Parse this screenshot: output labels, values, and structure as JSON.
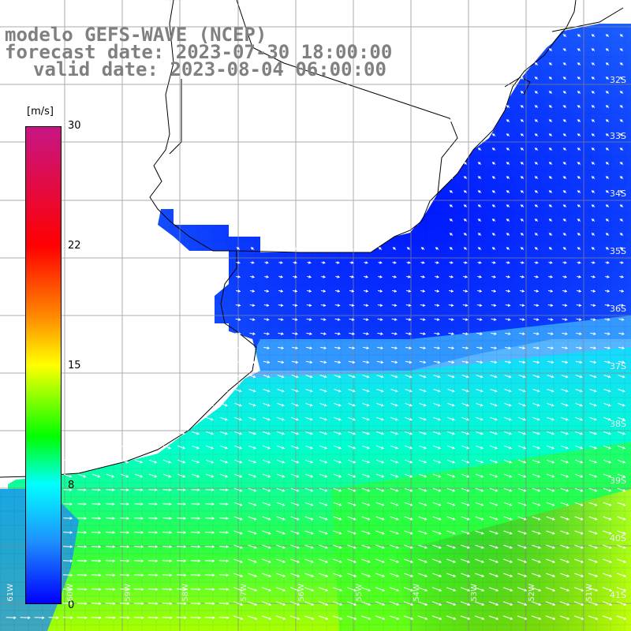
{
  "title": {
    "line1": "modelo GEFS-WAVE (NCEP)",
    "line2": "forecast date: 2023-07-30 18:00:00",
    "line3": "valid date: 2023-08-04 06:00:00"
  },
  "colorbar": {
    "units": "[m/s]",
    "ticks": [
      "30",
      "22",
      "15",
      "8",
      "0"
    ],
    "colors": [
      "#c71585",
      "#ff0000",
      "#ff8c00",
      "#ffff00",
      "#00ff00",
      "#00ffff",
      "#1e90ff",
      "#0000ff"
    ]
  },
  "lat_labels": [
    "32S",
    "33S",
    "34S",
    "35S",
    "36S",
    "37S",
    "38S",
    "39S",
    "40S",
    "41S"
  ],
  "lon_labels": [
    "61W",
    "60W",
    "59W",
    "58W",
    "57W",
    "56W",
    "55W",
    "54W",
    "53W",
    "52W",
    "51W"
  ],
  "field_summary": {
    "variable": "wind speed and direction",
    "units": "m/s",
    "range": [
      0,
      30
    ],
    "region": "coast of Uruguay / southern Brazil and Río de la Plata",
    "map_style": "land shown in white with black coastline, ocean colored by wind speed with white arrows"
  }
}
